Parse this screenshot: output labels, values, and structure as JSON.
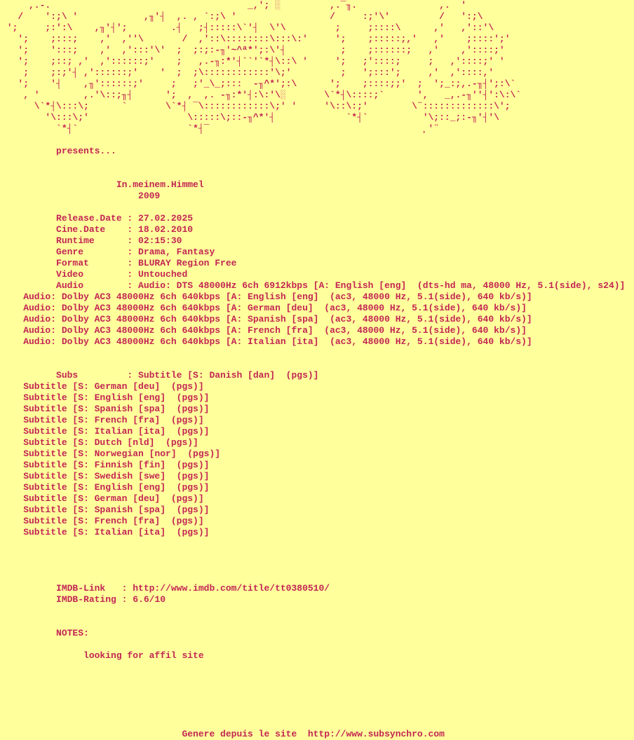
{
  "colors": {
    "background": "#FFFF9C",
    "text": "#C32553"
  },
  "ascii_art": {
    "description": "scene-group-ascii-logo",
    "lines": [
      "     ,.-.                                    _,'; ░         ,.‾╖.               ,.  '",
      "   /    ':;\\ '            ,╖'┤  ,. , `:;\\ '                 /     :;'\\'         /   ':;\\",
      " ';     ;:':\\    ,╖'┤';        .┤   ;┤:::::\\`'┤  \\'\\         ;     ;::::\\      ,'   ,'::'\\",
      "   ';    ;:::;    ,'  ,''\\       /  ,'::\\::::::::\\:::\\:'     ';    ;:::::;,'   ,'    ;::::';'",
      "   ';    ':::;    ,'  ,':::'\\'  ;  ;:;:-╖'~^ª*';:\\'┤          ;    ;::::::;   ,'    ,'::::;'",
      "   ';    ;::; ,'  ,'::::::;'    ;   ,.-╖:*'┤``'`*┤\\::\\ '     ';   ;'::::;     ;   ,'::::;' '",
      "    ;    ;:;'┤ ,'::::::;'    '  ;  ;\\::::::::::::'\\;'         ;   ';:::';     ,'  ,'::::,'",
      "   ';    '┤    ,╖'::::::;'     ;   ;'_\\_;:::  -╖^*';:\\      ';    ;::::;;'  ;  ';_:;,.-╖┤';:\\`",
      "    , '        ,.'\\::;╖┤      ';  ,  ,. -╖:*'┤:\\:'\\░       \\`*┤\\::::;`      ',   _,.-╖''┤':\\:\\`",
      "      \\`*┤\\:::\\;      `       \\`*┤ ‾\\::::::::::::\\;' '     '\\::\\:;'        \\¨:::::::::::::\\';",
      "        '\\:::\\;'                  \\:::::\\;::-╖^*'┤             `*┤`          '\\;::_;:-╖'┤'\\",
      "          `*┤`                    `*┤‾                                       ¸'¨"
    ]
  },
  "presents_label": "presents...",
  "release": {
    "title": "In.meinem.Himmel",
    "year": "2009",
    "fields": [
      {
        "label": "Release.Date",
        "value": "27.02.2025"
      },
      {
        "label": "Cine.Date",
        "value": "18.02.2010"
      },
      {
        "label": "Runtime",
        "value": "02:15:30"
      },
      {
        "label": "Genre",
        "value": "Drama, Fantasy"
      },
      {
        "label": "Format",
        "value": "BLURAY Region Free"
      },
      {
        "label": "Video",
        "value": "Untouched"
      },
      {
        "label": "Audio",
        "value": "Audio: DTS 48000Hz 6ch 6912kbps [A: English [eng]  (dts-hd ma, 48000 Hz, 5.1(side), s24)]"
      }
    ]
  },
  "audio_tracks": [
    "Audio: Dolby AC3 48000Hz 6ch 640kbps [A: English [eng]  (ac3, 48000 Hz, 5.1(side), 640 kb/s)]",
    "Audio: Dolby AC3 48000Hz 6ch 640kbps [A: German [deu]  (ac3, 48000 Hz, 5.1(side), 640 kb/s)]",
    "Audio: Dolby AC3 48000Hz 6ch 640kbps [A: Spanish [spa]  (ac3, 48000 Hz, 5.1(side), 640 kb/s)]",
    "Audio: Dolby AC3 48000Hz 6ch 640kbps [A: French [fra]  (ac3, 48000 Hz, 5.1(side), 640 kb/s)]",
    "Audio: Dolby AC3 48000Hz 6ch 640kbps [A: Italian [ita]  (ac3, 48000 Hz, 5.1(side), 640 kb/s)]"
  ],
  "subs": {
    "label": "Subs",
    "value": "Subtitle [S: Danish [dan]  (pgs)]"
  },
  "subtitle_tracks": [
    "Subtitle [S: German [deu]  (pgs)]",
    "Subtitle [S: English [eng]  (pgs)]",
    "Subtitle [S: Spanish [spa]  (pgs)]",
    "Subtitle [S: French [fra]  (pgs)]",
    "Subtitle [S: Italian [ita]  (pgs)]",
    "Subtitle [S: Dutch [nld]  (pgs)]",
    "Subtitle [S: Norwegian [nor]  (pgs)]",
    "Subtitle [S: Finnish [fin]  (pgs)]",
    "Subtitle [S: Swedish [swe]  (pgs)]",
    "Subtitle [S: English [eng]  (pgs)]",
    "Subtitle [S: German [deu]  (pgs)]",
    "Subtitle [S: Spanish [spa]  (pgs)]",
    "Subtitle [S: French [fra]  (pgs)]",
    "Subtitle [S: Italian [ita]  (pgs)]"
  ],
  "imdb": {
    "link_label": "IMDB-Link",
    "link": "http://www.imdb.com/title/tt0380510/",
    "rating_label": "IMDB-Rating",
    "rating": "6.6/10"
  },
  "notes": {
    "label": "NOTES:",
    "text": "looking for affil site"
  },
  "footer": "Genere depuis le site  http://www.subsynchro.com"
}
